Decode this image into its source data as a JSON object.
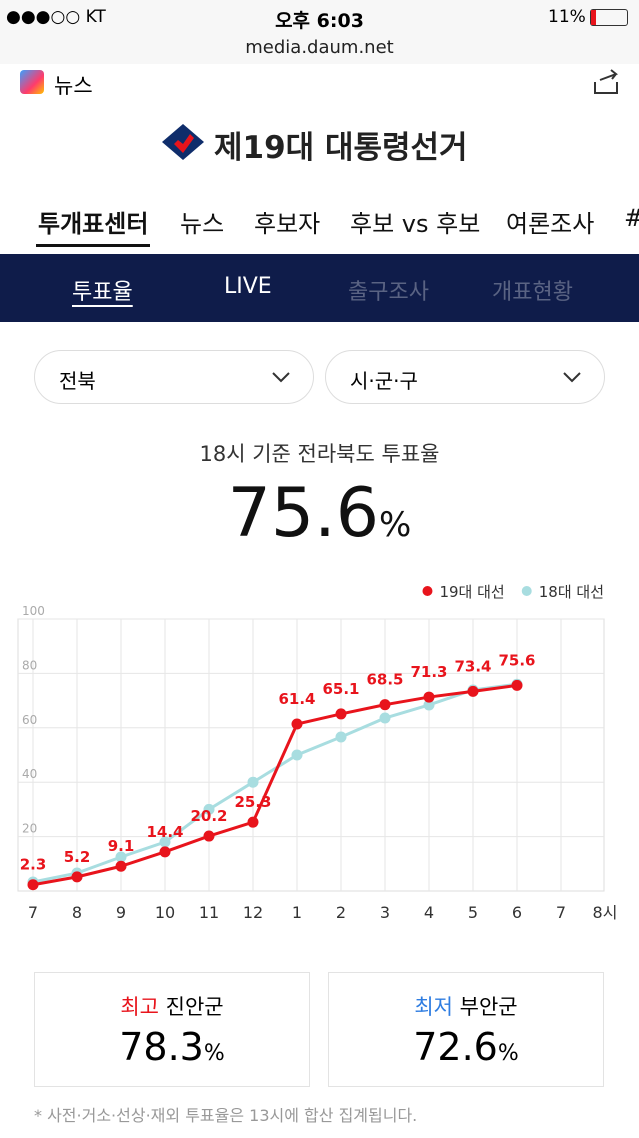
{
  "status": {
    "carrier": "●●●○○ KT",
    "time": "오후 6:03",
    "battery": "11%"
  },
  "url": "media.daum.net",
  "app": {
    "name": "뉴스"
  },
  "banner": {
    "title": "제19대 대통령선거"
  },
  "tabs": [
    "투개표센터",
    "뉴스",
    "후보자",
    "후보 vs 후보",
    "여론조사",
    "#"
  ],
  "subtabs": [
    "투표율",
    "LIVE",
    "출구조사",
    "개표현황"
  ],
  "selects": [
    "전북",
    "시·군·구"
  ],
  "headline": {
    "caption": "18시 기준 전라북도 투표율",
    "value": "75.6",
    "unit": "%"
  },
  "chart_data": {
    "type": "line",
    "categories": [
      "7",
      "8",
      "9",
      "10",
      "11",
      "12",
      "1",
      "2",
      "3",
      "4",
      "5",
      "6",
      "7",
      "8시"
    ],
    "series": [
      {
        "name": "19대 대선",
        "color": "#e8141c",
        "values": [
          2.3,
          5.2,
          9.1,
          14.4,
          20.2,
          25.3,
          61.4,
          65.1,
          68.5,
          71.3,
          73.4,
          75.6,
          null,
          null
        ]
      },
      {
        "name": "18대 대선",
        "color": "#a8dde0",
        "values": [
          3.3,
          6.6,
          12.5,
          18,
          30,
          40,
          50,
          56.6,
          63.6,
          68.4,
          73.9,
          76,
          null,
          null
        ]
      }
    ],
    "ylim": [
      0,
      100
    ],
    "yticks": [
      20,
      40,
      60,
      80,
      100
    ],
    "grid": true,
    "legend": "top-right"
  },
  "cards": [
    {
      "label": "최고",
      "place": "진안군",
      "value": "78.3",
      "unit": "%"
    },
    {
      "label": "최저",
      "place": "부안군",
      "value": "72.6",
      "unit": "%"
    }
  ],
  "footnote": "* 사전·거소·선상·재외 투표율은 13시에 합산 집계됩니다."
}
